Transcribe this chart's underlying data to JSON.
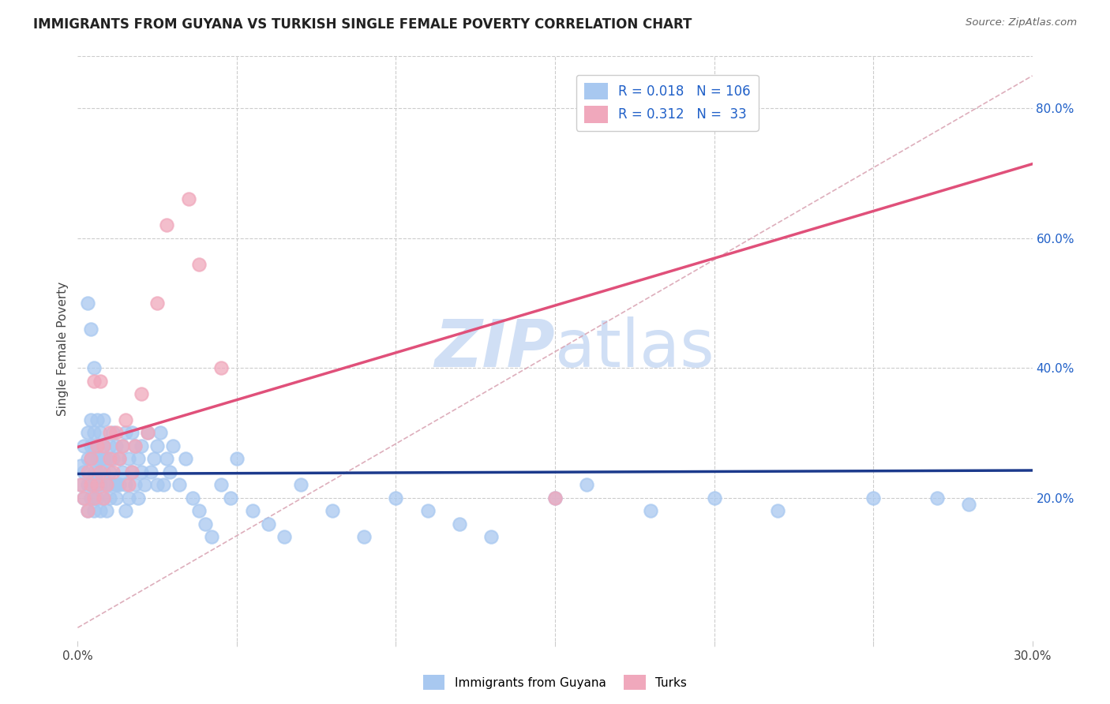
{
  "title": "IMMIGRANTS FROM GUYANA VS TURKISH SINGLE FEMALE POVERTY CORRELATION CHART",
  "source": "Source: ZipAtlas.com",
  "ylabel": "Single Female Poverty",
  "xlim": [
    0.0,
    0.3
  ],
  "ylim": [
    -0.02,
    0.88
  ],
  "xticks": [
    0.0,
    0.05,
    0.1,
    0.15,
    0.2,
    0.25,
    0.3
  ],
  "xtick_labels": [
    "0.0%",
    "",
    "",
    "",
    "",
    "",
    "30.0%"
  ],
  "yticks_right": [
    0.2,
    0.4,
    0.6,
    0.8
  ],
  "ytick_labels_right": [
    "20.0%",
    "40.0%",
    "60.0%",
    "80.0%"
  ],
  "legend_r1": "0.018",
  "legend_n1": "106",
  "legend_r2": "0.312",
  "legend_n2": " 33",
  "legend_label1": "Immigrants from Guyana",
  "legend_label2": "Turks",
  "color_guyana": "#A8C8F0",
  "color_turks": "#F0A8BC",
  "color_line_guyana": "#1C3A8C",
  "color_line_turks": "#E0507A",
  "color_diag": "#D8A0B0",
  "color_legend_text": "#2060C8",
  "watermark_color": "#D0DFF5",
  "guyana_x": [
    0.001,
    0.001,
    0.002,
    0.002,
    0.002,
    0.003,
    0.003,
    0.003,
    0.003,
    0.004,
    0.004,
    0.004,
    0.004,
    0.004,
    0.005,
    0.005,
    0.005,
    0.005,
    0.005,
    0.005,
    0.006,
    0.006,
    0.006,
    0.006,
    0.006,
    0.007,
    0.007,
    0.007,
    0.007,
    0.008,
    0.008,
    0.008,
    0.008,
    0.009,
    0.009,
    0.009,
    0.01,
    0.01,
    0.01,
    0.01,
    0.011,
    0.011,
    0.012,
    0.012,
    0.012,
    0.013,
    0.013,
    0.014,
    0.014,
    0.015,
    0.015,
    0.015,
    0.016,
    0.016,
    0.017,
    0.017,
    0.018,
    0.018,
    0.019,
    0.019,
    0.02,
    0.02,
    0.021,
    0.022,
    0.023,
    0.024,
    0.025,
    0.025,
    0.026,
    0.027,
    0.028,
    0.029,
    0.03,
    0.032,
    0.034,
    0.036,
    0.038,
    0.04,
    0.042,
    0.045,
    0.048,
    0.05,
    0.055,
    0.06,
    0.065,
    0.07,
    0.08,
    0.09,
    0.1,
    0.11,
    0.12,
    0.13,
    0.15,
    0.16,
    0.18,
    0.2,
    0.22,
    0.25,
    0.27,
    0.28,
    0.003,
    0.004,
    0.005,
    0.006,
    0.008,
    0.012
  ],
  "guyana_y": [
    0.25,
    0.22,
    0.24,
    0.28,
    0.2,
    0.22,
    0.26,
    0.3,
    0.18,
    0.22,
    0.26,
    0.28,
    0.32,
    0.2,
    0.22,
    0.24,
    0.28,
    0.18,
    0.3,
    0.2,
    0.24,
    0.22,
    0.26,
    0.28,
    0.2,
    0.26,
    0.3,
    0.22,
    0.18,
    0.24,
    0.28,
    0.2,
    0.32,
    0.22,
    0.26,
    0.18,
    0.24,
    0.28,
    0.2,
    0.22,
    0.26,
    0.3,
    0.22,
    0.28,
    0.2,
    0.26,
    0.22,
    0.24,
    0.28,
    0.22,
    0.3,
    0.18,
    0.26,
    0.2,
    0.24,
    0.3,
    0.22,
    0.28,
    0.26,
    0.2,
    0.24,
    0.28,
    0.22,
    0.3,
    0.24,
    0.26,
    0.22,
    0.28,
    0.3,
    0.22,
    0.26,
    0.24,
    0.28,
    0.22,
    0.26,
    0.2,
    0.18,
    0.16,
    0.14,
    0.22,
    0.2,
    0.26,
    0.18,
    0.16,
    0.14,
    0.22,
    0.18,
    0.14,
    0.2,
    0.18,
    0.16,
    0.14,
    0.2,
    0.22,
    0.18,
    0.2,
    0.18,
    0.2,
    0.2,
    0.19,
    0.5,
    0.46,
    0.4,
    0.32,
    0.26,
    0.22
  ],
  "turks_x": [
    0.001,
    0.002,
    0.003,
    0.003,
    0.004,
    0.004,
    0.005,
    0.005,
    0.006,
    0.006,
    0.007,
    0.007,
    0.008,
    0.008,
    0.009,
    0.01,
    0.01,
    0.011,
    0.012,
    0.013,
    0.014,
    0.015,
    0.016,
    0.017,
    0.018,
    0.02,
    0.022,
    0.025,
    0.028,
    0.035,
    0.038,
    0.045,
    0.15
  ],
  "turks_y": [
    0.22,
    0.2,
    0.24,
    0.18,
    0.26,
    0.22,
    0.38,
    0.2,
    0.28,
    0.22,
    0.24,
    0.38,
    0.28,
    0.2,
    0.22,
    0.26,
    0.3,
    0.24,
    0.3,
    0.26,
    0.28,
    0.32,
    0.22,
    0.24,
    0.28,
    0.36,
    0.3,
    0.5,
    0.62,
    0.66,
    0.56,
    0.4,
    0.2
  ]
}
